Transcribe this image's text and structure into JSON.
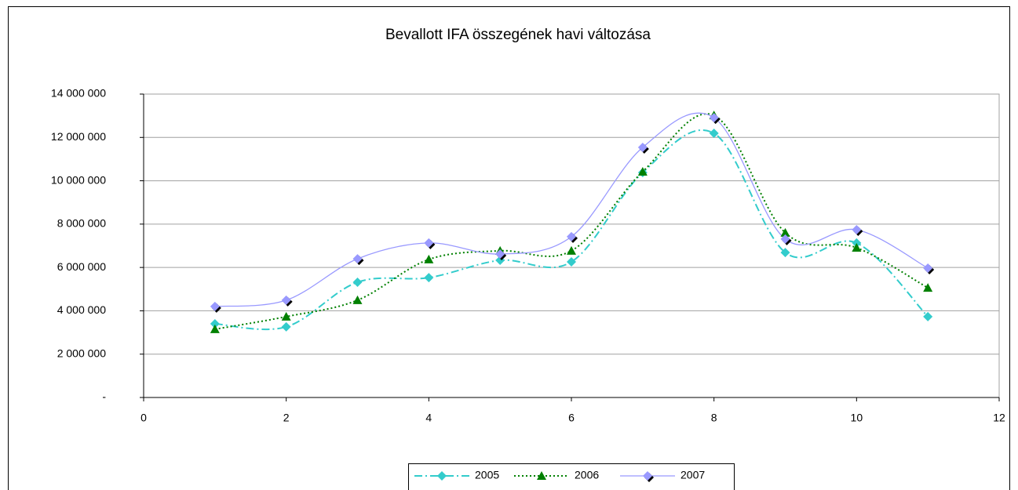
{
  "chart_data": {
    "type": "line",
    "title": "Bevallott IFA összegének havi változása",
    "x": [
      1,
      2,
      3,
      4,
      5,
      6,
      7,
      8,
      9,
      10,
      11
    ],
    "series": [
      {
        "name": "2005",
        "color": "#33cccc",
        "marker": "diamond",
        "line_style": "dash-dot",
        "values": [
          3400000,
          3260000,
          5320000,
          5530000,
          6330000,
          6260000,
          10380000,
          12190000,
          6690000,
          7130000,
          3730000
        ]
      },
      {
        "name": "2006",
        "color": "#008000",
        "marker": "triangle",
        "line_style": "dotted",
        "values": [
          3150000,
          3730000,
          4490000,
          6370000,
          6770000,
          6770000,
          10420000,
          13020000,
          7600000,
          6910000,
          5060000
        ]
      },
      {
        "name": "2007",
        "color": "#9999ff",
        "marker": "diamond",
        "line_style": "solid",
        "values": [
          4200000,
          4490000,
          6400000,
          7130000,
          6620000,
          7420000,
          11540000,
          12910000,
          7310000,
          7740000,
          5970000
        ]
      }
    ],
    "xlim": [
      0,
      12
    ],
    "xticks": [
      0,
      2,
      4,
      6,
      8,
      10,
      12
    ],
    "ylim": [
      0,
      14000000
    ],
    "yticks": [
      {
        "value": 0,
        "label": "-"
      },
      {
        "value": 2000000,
        "label": "2 000 000"
      },
      {
        "value": 4000000,
        "label": "4 000 000"
      },
      {
        "value": 6000000,
        "label": "6 000 000"
      },
      {
        "value": 8000000,
        "label": "8 000 000"
      },
      {
        "value": 10000000,
        "label": "10 000 000"
      },
      {
        "value": 12000000,
        "label": "12 000 000"
      },
      {
        "value": 14000000,
        "label": "14 000 000"
      }
    ],
    "grid": true,
    "smooth": true,
    "legend": "bottom"
  }
}
